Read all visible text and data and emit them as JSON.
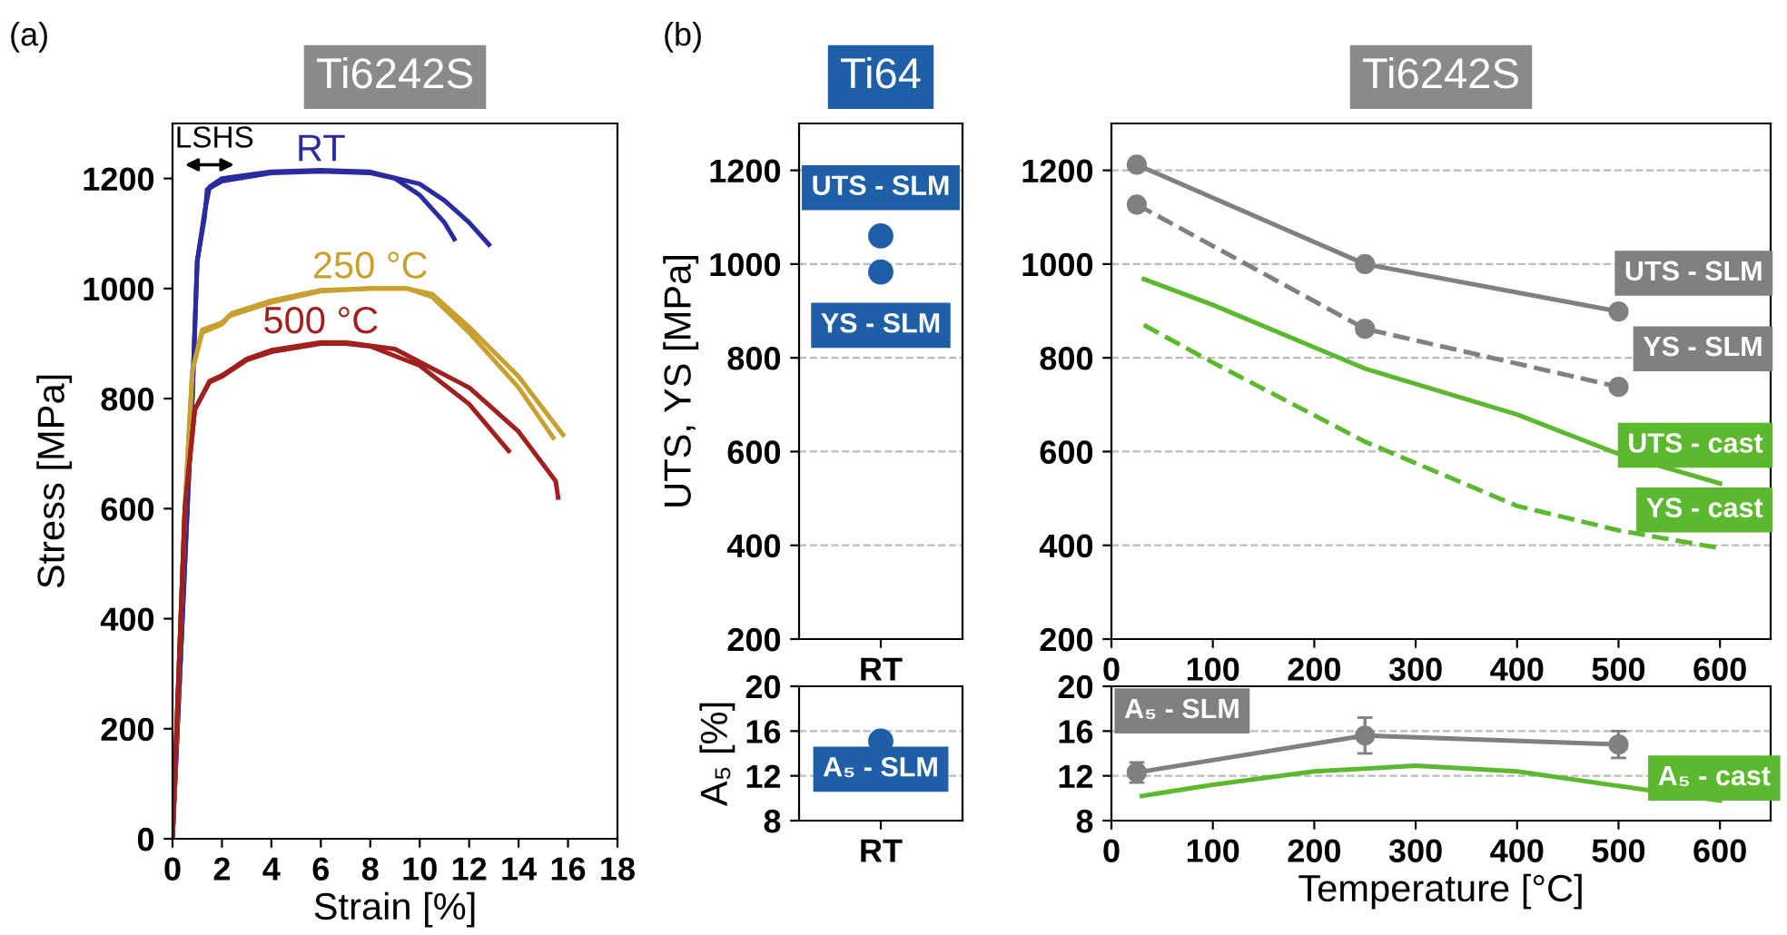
{
  "chart_data": [
    {
      "type": "line",
      "title": "Ti6242S",
      "xlabel": "Strain [%]",
      "ylabel": "Stress [MPa]",
      "xlim": [
        0,
        18
      ],
      "xticks": [
        0,
        2,
        4,
        6,
        8,
        10,
        12,
        14,
        16,
        18
      ],
      "ylim": [
        0,
        1300
      ],
      "yticks": [
        0,
        200,
        400,
        600,
        800,
        1000,
        1200
      ],
      "grid": false,
      "annotations": [
        "(a)",
        "LSHS"
      ],
      "series": [
        {
          "name": "RT",
          "color": "#2b2ba0",
          "x": [
            0,
            0.4,
            0.8,
            1.0,
            1.3,
            1.4,
            2,
            4,
            6,
            8,
            9,
            10,
            11,
            11.4
          ],
          "values": [
            0,
            400,
            800,
            1050,
            1130,
            1180,
            1195,
            1210,
            1213,
            1210,
            1200,
            1170,
            1120,
            1090
          ]
        },
        {
          "color": "#2b2ba0",
          "x": [
            0,
            0.4,
            0.8,
            1.0,
            1.3,
            1.5,
            2,
            4,
            6,
            8,
            10,
            11,
            12,
            12.8
          ],
          "values": [
            0,
            400,
            800,
            1050,
            1140,
            1185,
            1200,
            1212,
            1215,
            1212,
            1190,
            1160,
            1120,
            1080
          ]
        },
        {
          "name": "250 °C",
          "color": "#c8a030",
          "x": [
            0,
            0.5,
            0.8,
            1.2,
            2,
            2.3,
            4,
            6,
            8,
            9.5,
            10.5,
            12,
            14,
            15.4
          ],
          "values": [
            0,
            600,
            850,
            920,
            935,
            950,
            975,
            995,
            1000,
            1000,
            985,
            920,
            820,
            729
          ]
        },
        {
          "color": "#c8a030",
          "x": [
            0,
            0.5,
            0.8,
            1.2,
            2,
            2.4,
            4,
            6,
            8,
            9.5,
            10.5,
            12,
            14,
            15.8
          ],
          "values": [
            0,
            600,
            850,
            925,
            938,
            955,
            978,
            997,
            1000,
            1000,
            990,
            930,
            840,
            734
          ]
        },
        {
          "name": "500 °C",
          "color": "#a02020",
          "x": [
            0,
            0.5,
            0.9,
            1.5,
            2,
            3,
            4,
            6,
            7,
            8,
            10,
            12,
            13.6
          ],
          "values": [
            0,
            600,
            780,
            830,
            840,
            870,
            885,
            900,
            900,
            895,
            860,
            790,
            705
          ]
        },
        {
          "color": "#a02020",
          "x": [
            0,
            0.5,
            0.9,
            1.5,
            2,
            3,
            4,
            6,
            7,
            9,
            12,
            14,
            15.5,
            15.6
          ],
          "values": [
            0,
            600,
            780,
            832,
            842,
            872,
            888,
            902,
            902,
            890,
            820,
            740,
            650,
            620
          ]
        }
      ]
    },
    {
      "type": "scatter",
      "title": "Ti64",
      "ylabel": "UTS, YS [MPa]",
      "categories": [
        "RT"
      ],
      "ylim": [
        200,
        1300
      ],
      "yticks": [
        200,
        400,
        600,
        800,
        1000,
        1200
      ],
      "grid": "y",
      "annotations": [
        "(b)"
      ],
      "marker": "circle",
      "series": [
        {
          "name": "UTS - SLM",
          "color": "#1f5fa8",
          "values": [
            1060
          ],
          "line_style": "solid"
        },
        {
          "name": "YS - SLM",
          "color": "#1f5fa8",
          "values": [
            983
          ],
          "line_style": "dashed"
        }
      ]
    },
    {
      "type": "line",
      "title": "Ti6242S",
      "xlim": [
        0,
        650
      ],
      "xticks": [
        0,
        100,
        200,
        300,
        400,
        500,
        600
      ],
      "ylim": [
        200,
        1300
      ],
      "yticks": [
        200,
        400,
        600,
        800,
        1000,
        1200
      ],
      "grid": "y",
      "series": [
        {
          "name": "UTS - SLM",
          "color": "#808080",
          "x": [
            25,
            250,
            500
          ],
          "values": [
            1212,
            1000,
            899
          ],
          "marker": "circle",
          "line_style": "solid"
        },
        {
          "name": "YS - SLM",
          "color": "#808080",
          "x": [
            25,
            250,
            500
          ],
          "values": [
            1127,
            862,
            738
          ],
          "marker": "circle",
          "line_style": "dashed"
        },
        {
          "name": "UTS - cast",
          "color": "#5cb82e",
          "x": [
            32,
            100,
            250,
            400,
            500,
            600
          ],
          "values": [
            968,
            913,
            777,
            679,
            595,
            532
          ],
          "line_style": "solid"
        },
        {
          "name": "YS - cast",
          "color": "#5cb82e",
          "x": [
            32,
            100,
            250,
            400,
            500,
            600
          ],
          "values": [
            870,
            790,
            621,
            484,
            432,
            394
          ],
          "line_style": "dashed"
        }
      ]
    },
    {
      "type": "scatter",
      "ylabel": "A₅ [%]",
      "categories": [
        "RT"
      ],
      "ylim": [
        8,
        20
      ],
      "yticks": [
        8,
        12,
        16,
        20
      ],
      "grid": "y",
      "marker": "circle",
      "series": [
        {
          "name": "A₅ - SLM",
          "color": "#1f5fa8",
          "values": [
            15.1
          ]
        }
      ]
    },
    {
      "type": "line",
      "xlabel": "Temperature [°C]",
      "xlim": [
        0,
        650
      ],
      "xticks": [
        0,
        100,
        200,
        300,
        400,
        500,
        600
      ],
      "ylim": [
        8,
        20
      ],
      "yticks": [
        8,
        12,
        16,
        20
      ],
      "grid": "y",
      "series": [
        {
          "name": "A₅ - SLM",
          "color": "#808080",
          "x": [
            25,
            250,
            500
          ],
          "values": [
            12.3,
            15.6,
            14.8
          ],
          "errors": [
            0.9,
            1.6,
            1.2
          ],
          "marker": "circle"
        },
        {
          "name": "A₅ - cast",
          "color": "#5cb82e",
          "x": [
            30,
            100,
            200,
            300,
            400,
            500,
            600
          ],
          "values": [
            10.2,
            11.2,
            12.4,
            12.9,
            12.4,
            11.1,
            9.8
          ]
        }
      ]
    }
  ]
}
